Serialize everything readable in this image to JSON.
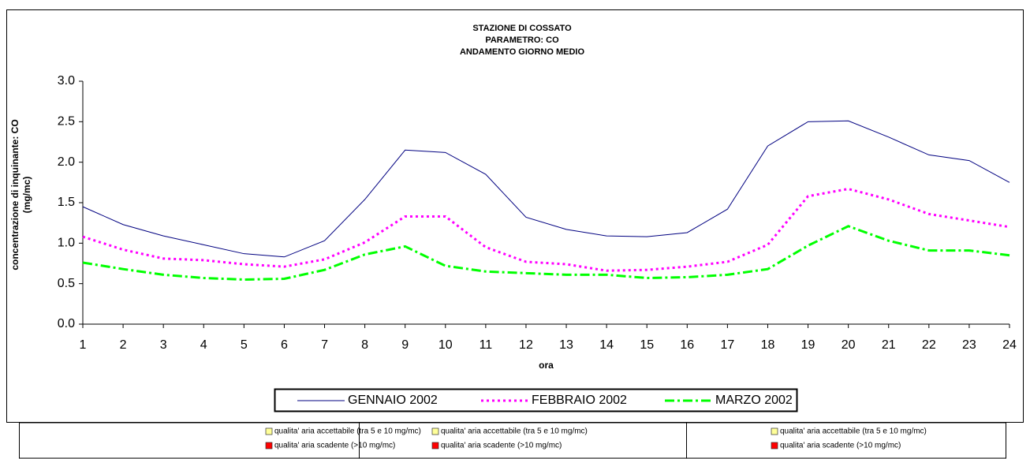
{
  "chart_data": {
    "type": "line",
    "title": [
      "STAZIONE DI COSSATO",
      "PARAMETRO: CO",
      "ANDAMENTO GIORNO MEDIO"
    ],
    "x_label": "ora",
    "y_label": [
      "concentrazione di inquinante: CO",
      "(mg/mc)"
    ],
    "x": [
      1,
      2,
      3,
      4,
      5,
      6,
      7,
      8,
      9,
      10,
      11,
      12,
      13,
      14,
      15,
      16,
      17,
      18,
      19,
      20,
      21,
      22,
      23,
      24
    ],
    "xlim": [
      1,
      24
    ],
    "xticks": [
      1,
      2,
      3,
      4,
      5,
      6,
      7,
      8,
      9,
      10,
      11,
      12,
      13,
      14,
      15,
      16,
      17,
      18,
      19,
      20,
      21,
      22,
      23,
      24
    ],
    "ylim": [
      0,
      3
    ],
    "yticks": [
      {
        "value": 0,
        "label": "0.0"
      },
      {
        "value": 0.5,
        "label": "0.5"
      },
      {
        "value": 1,
        "label": "1.0"
      },
      {
        "value": 1.5,
        "label": "1.5"
      },
      {
        "value": 2,
        "label": "2.0"
      },
      {
        "value": 2.5,
        "label": "2.5"
      },
      {
        "value": 3,
        "label": "3.0"
      }
    ],
    "grid": false,
    "legend": "bottom",
    "series": [
      {
        "name": "GENNAIO 2002",
        "color": "#000080",
        "dash": "solid",
        "values": [
          1.45,
          1.23,
          1.09,
          0.98,
          0.87,
          0.83,
          1.03,
          1.54,
          2.15,
          2.12,
          1.85,
          1.32,
          1.17,
          1.09,
          1.08,
          1.13,
          1.42,
          2.2,
          2.5,
          2.51,
          2.31,
          2.09,
          2.02,
          1.75
        ]
      },
      {
        "name": "FEBBRAIO 2002",
        "color": "#ff00ff",
        "dash": "dotted",
        "values": [
          1.08,
          0.92,
          0.81,
          0.79,
          0.74,
          0.71,
          0.8,
          1.01,
          1.33,
          1.33,
          0.95,
          0.77,
          0.74,
          0.66,
          0.67,
          0.71,
          0.77,
          0.98,
          1.58,
          1.67,
          1.54,
          1.36,
          1.28,
          1.2
        ]
      },
      {
        "name": "MARZO 2002",
        "color": "#00ff00",
        "dash": "dashdot",
        "values": [
          0.76,
          0.68,
          0.61,
          0.57,
          0.55,
          0.56,
          0.67,
          0.86,
          0.96,
          0.72,
          0.65,
          0.63,
          0.61,
          0.61,
          0.57,
          0.58,
          0.61,
          0.68,
          0.97,
          1.21,
          1.03,
          0.91,
          0.91,
          0.85
        ]
      }
    ]
  },
  "footer_table": {
    "columns": [
      {
        "items": [
          {
            "label": "qualita' aria accettabile (tra 5 e 10 mg/mc)",
            "color": "#ffff99"
          },
          {
            "label": "qualita' aria scadente (>10 mg/mc)",
            "color": "#ff0000"
          }
        ]
      },
      {
        "items": [
          {
            "label": "qualita' aria accettabile (tra 5 e 10 mg/mc)",
            "color": "#ffff99"
          },
          {
            "label": "qualita' aria scadente (>10 mg/mc)",
            "color": "#ff0000"
          }
        ]
      },
      {
        "items": [
          {
            "label": "qualita' aria accettabile (tra 5 e 10 mg/mc)",
            "color": "#ffff99"
          },
          {
            "label": "qualita' aria scadente (>10 mg/mc)",
            "color": "#ff0000"
          }
        ]
      }
    ]
  }
}
